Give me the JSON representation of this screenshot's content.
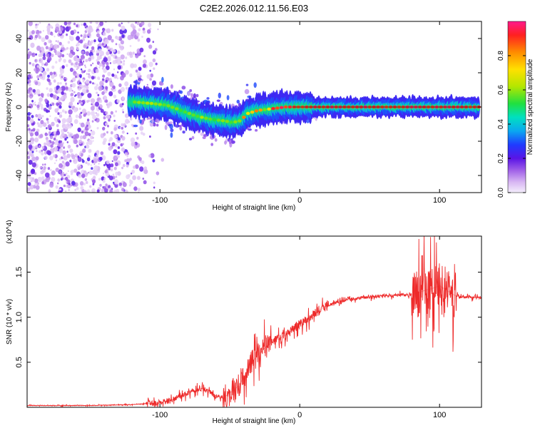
{
  "title": "C2E2.2026.012.11.56.E03",
  "chart_data": [
    {
      "type": "heatmap",
      "title": "C2E2.2026.012.11.56.E03",
      "xlabel": "Height of straight line (km)",
      "ylabel": "Frequency (Hz)",
      "xlim": [
        -195,
        130
      ],
      "ylim": [
        -50,
        50
      ],
      "xticks": [
        -100,
        0,
        100
      ],
      "yticks": [
        -40,
        -20,
        0,
        20,
        40
      ],
      "colorbar": {
        "label": "Normalized spectral amplitude",
        "range": [
          0,
          1
        ],
        "ticks": [
          "0.0",
          "0.2",
          "0.4",
          "0.6",
          "0.8"
        ]
      },
      "ridge": {
        "name": "Doppler ridge",
        "x": [
          -120,
          -105,
          -95,
          -85,
          -75,
          -65,
          -55,
          -48,
          -42,
          -38,
          -30,
          -20,
          -10,
          0,
          20,
          60,
          100,
          112,
          130
        ],
        "y": [
          3,
          2,
          1,
          -2,
          -5,
          -7,
          -8,
          -9,
          -8,
          -4,
          -2,
          -1,
          0,
          0,
          0,
          0,
          0,
          0,
          0
        ]
      },
      "noise_region": {
        "x_range": [
          -195,
          -110
        ],
        "y_range": [
          -50,
          50
        ]
      }
    },
    {
      "type": "line",
      "xlabel": "Height of straight line (km)",
      "ylabel": "SNR (10 * v/v)",
      "scale_note": "(x10^4)",
      "xlim": [
        -195,
        130
      ],
      "ylim": [
        0,
        1.9
      ],
      "xticks": [
        -100,
        0,
        100
      ],
      "yticks": [
        "0.5",
        "1.0",
        "1.5"
      ],
      "series": [
        {
          "name": "SNR",
          "color": "#ee2a2a",
          "x": [
            -195,
            -150,
            -120,
            -100,
            -90,
            -80,
            -70,
            -60,
            -55,
            -45,
            -40,
            -35,
            -30,
            -25,
            -20,
            -10,
            0,
            10,
            20,
            30,
            40,
            60,
            80,
            85,
            90,
            95,
            100,
            105,
            110,
            115,
            130
          ],
          "y": [
            0.02,
            0.02,
            0.03,
            0.05,
            0.09,
            0.16,
            0.21,
            0.13,
            0.1,
            0.22,
            0.33,
            0.48,
            0.58,
            0.66,
            0.72,
            0.8,
            0.92,
            1.04,
            1.13,
            1.18,
            1.21,
            1.24,
            1.25,
            1.27,
            1.3,
            1.32,
            1.35,
            1.3,
            1.25,
            1.22,
            1.22
          ]
        }
      ]
    }
  ]
}
